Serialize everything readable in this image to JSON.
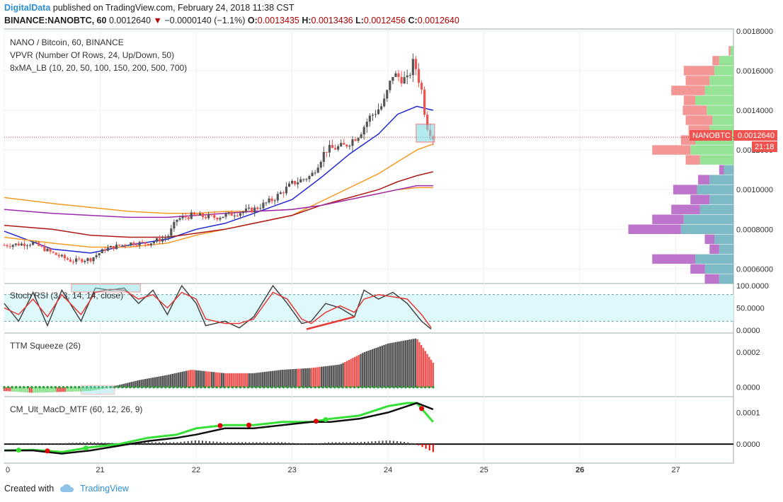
{
  "header": {
    "brand": "DigitalData",
    "published": "published on TradingView.com, February 24, 2018 11:38 CST",
    "symbol": "BINANCE:NANOBTC, 60",
    "last": "0.0012640",
    "change": "−0.0000140 (−1.1%)",
    "o_label": "O:",
    "o_value": "0.0013435",
    "h_label": "H:",
    "h_value": "0.0013436",
    "l_label": "L:",
    "l_value": "0.0012456",
    "c_label": "C:",
    "c_value": "0.0012640"
  },
  "footer": {
    "created": "Created with",
    "brand": "TradingView"
  },
  "colors": {
    "up": "#555555",
    "down": "#ef5350",
    "ma_blue": "#1f26d6",
    "ma_orange": "#f59a23",
    "ma_darkred": "#b01818",
    "ma_purple": "#9c27b0",
    "vp_up": "#8be08b",
    "vp_down": "#f28b8b"
  },
  "chart_data": [
    {
      "type": "candlestick",
      "title": "NANO / Bitcoin, 60, BINANCE",
      "indicators": [
        "VPVR (Number Of Rows, 24, Up/Down, 50)",
        "8xMA_LB (10, 20, 50, 100, 150, 200, 500, 700)"
      ],
      "x_ticks": [
        "0",
        "21",
        "22",
        "23",
        "24",
        "25",
        "26",
        "27"
      ],
      "x_range_days": [
        20,
        27.6
      ],
      "y_ticks": [
        "0.0006000",
        "0.0008000",
        "0.0010000",
        "0.0012000",
        "0.0014000",
        "0.0016000",
        "0.0018000"
      ],
      "ylim": [
        0.00053,
        0.00181
      ],
      "last_price_label": "NANOBTC",
      "last_price": "0.0012640",
      "countdown": "21:18",
      "last_price_value": 0.001264,
      "candle_anchors": [
        [
          20.0,
          0.00072
        ],
        [
          20.3,
          0.00073
        ],
        [
          20.5,
          0.00068
        ],
        [
          20.7,
          0.00064
        ],
        [
          20.9,
          0.00065
        ],
        [
          21.05,
          0.0007
        ],
        [
          21.3,
          0.00073
        ],
        [
          21.5,
          0.00073
        ],
        [
          21.7,
          0.00076
        ],
        [
          21.8,
          0.00085
        ],
        [
          21.95,
          0.00087
        ],
        [
          22.2,
          0.00086
        ],
        [
          22.4,
          0.00088
        ],
        [
          22.6,
          0.0009
        ],
        [
          22.8,
          0.00095
        ],
        [
          23.0,
          0.00103
        ],
        [
          23.2,
          0.00107
        ],
        [
          23.35,
          0.0012
        ],
        [
          23.55,
          0.00122
        ],
        [
          23.7,
          0.00128
        ],
        [
          23.8,
          0.00136
        ],
        [
          23.95,
          0.00143
        ],
        [
          24.05,
          0.00158
        ],
        [
          24.2,
          0.00155
        ],
        [
          24.27,
          0.00165
        ],
        [
          24.35,
          0.0015
        ],
        [
          24.4,
          0.00133
        ],
        [
          24.47,
          0.001264
        ]
      ],
      "moving_averages": [
        {
          "color": "#1f26d6",
          "points": [
            [
              20.0,
              0.00079
            ],
            [
              20.5,
              0.0007
            ],
            [
              20.9,
              0.00068
            ],
            [
              21.3,
              0.00072
            ],
            [
              21.7,
              0.00075
            ],
            [
              22.0,
              0.0008
            ],
            [
              22.3,
              0.00083
            ],
            [
              22.6,
              0.00088
            ],
            [
              23.0,
              0.00095
            ],
            [
              23.3,
              0.00106
            ],
            [
              23.6,
              0.00118
            ],
            [
              23.9,
              0.00128
            ],
            [
              24.1,
              0.00138
            ],
            [
              24.3,
              0.00142
            ],
            [
              24.47,
              0.0014
            ]
          ]
        },
        {
          "color": "#f59a23",
          "points": [
            [
              20.0,
              0.00076
            ],
            [
              20.5,
              0.00073
            ],
            [
              20.9,
              0.00071
            ],
            [
              21.3,
              0.00071
            ],
            [
              21.7,
              0.00073
            ],
            [
              22.0,
              0.00077
            ],
            [
              22.3,
              0.0008
            ],
            [
              22.6,
              0.00083
            ],
            [
              23.0,
              0.00087
            ],
            [
              23.3,
              0.00094
            ],
            [
              23.6,
              0.00101
            ],
            [
              23.9,
              0.00108
            ],
            [
              24.1,
              0.00114
            ],
            [
              24.3,
              0.0012
            ],
            [
              24.47,
              0.00123
            ]
          ]
        },
        {
          "color": "#b01818",
          "points": [
            [
              20.0,
              0.00082
            ],
            [
              20.5,
              0.0008
            ],
            [
              20.9,
              0.00077
            ],
            [
              21.3,
              0.00076
            ],
            [
              21.7,
              0.00076
            ],
            [
              22.0,
              0.00078
            ],
            [
              22.3,
              0.0008
            ],
            [
              22.6,
              0.00083
            ],
            [
              23.0,
              0.00087
            ],
            [
              23.3,
              0.00092
            ],
            [
              23.6,
              0.00096
            ],
            [
              23.9,
              0.001
            ],
            [
              24.1,
              0.00104
            ],
            [
              24.3,
              0.00107
            ],
            [
              24.47,
              0.00109
            ]
          ]
        },
        {
          "color": "#f59a23",
          "points": [
            [
              20.0,
              0.00096
            ],
            [
              20.5,
              0.00093
            ],
            [
              20.9,
              0.00091
            ],
            [
              21.3,
              0.00089
            ],
            [
              21.7,
              0.00088
            ],
            [
              22.0,
              0.00088
            ],
            [
              22.3,
              0.00089
            ],
            [
              22.6,
              0.00089
            ],
            [
              23.0,
              0.0009
            ],
            [
              23.3,
              0.00092
            ],
            [
              23.6,
              0.00095
            ],
            [
              23.9,
              0.00098
            ],
            [
              24.1,
              0.001
            ],
            [
              24.3,
              0.00101
            ],
            [
              24.47,
              0.00101
            ]
          ]
        },
        {
          "color": "#9c27b0",
          "points": [
            [
              20.0,
              0.0009
            ],
            [
              20.5,
              0.00088
            ],
            [
              20.9,
              0.00087
            ],
            [
              21.3,
              0.00086
            ],
            [
              21.7,
              0.00086
            ],
            [
              22.0,
              0.00087
            ],
            [
              22.3,
              0.00088
            ],
            [
              22.6,
              0.00089
            ],
            [
              23.0,
              0.0009
            ],
            [
              23.3,
              0.00092
            ],
            [
              23.6,
              0.00095
            ],
            [
              23.9,
              0.00098
            ],
            [
              24.1,
              0.001
            ],
            [
              24.3,
              0.00102
            ],
            [
              24.47,
              0.00102
            ]
          ]
        }
      ],
      "volume_profile": [
        {
          "price": 0.0017,
          "up": 3,
          "down": 2
        },
        {
          "price": 0.00165,
          "up": 15,
          "down": 7
        },
        {
          "price": 0.0016,
          "up": 20,
          "down": 32
        },
        {
          "price": 0.00155,
          "up": 25,
          "down": 25
        },
        {
          "price": 0.0015,
          "up": 30,
          "down": 35
        },
        {
          "price": 0.00145,
          "up": 40,
          "down": 12
        },
        {
          "price": 0.0014,
          "up": 28,
          "down": 25
        },
        {
          "price": 0.00135,
          "up": 22,
          "down": 28
        },
        {
          "price": 0.0013,
          "up": 25,
          "down": 22
        },
        {
          "price": 0.00125,
          "up": 40,
          "down": 15
        },
        {
          "price": 0.0012,
          "up": 45,
          "down": 40
        },
        {
          "price": 0.00115,
          "up": 35,
          "down": 15
        },
        {
          "price": 0.0011,
          "up": 10,
          "down": 5
        },
        {
          "price": 0.00105,
          "up": 25,
          "down": 12
        },
        {
          "price": 0.001,
          "up": 38,
          "down": 25
        },
        {
          "price": 0.00095,
          "up": 25,
          "down": 20
        },
        {
          "price": 0.0009,
          "up": 35,
          "down": 30
        },
        {
          "price": 0.00085,
          "up": 52,
          "down": 33
        },
        {
          "price": 0.0008,
          "up": 55,
          "down": 55
        },
        {
          "price": 0.00075,
          "up": 20,
          "down": 10
        },
        {
          "price": 0.0007,
          "up": 15,
          "down": 10
        },
        {
          "price": 0.00065,
          "up": 40,
          "down": 45
        },
        {
          "price": 0.0006,
          "up": 30,
          "down": 15
        },
        {
          "price": 0.00055,
          "up": 15,
          "down": 15
        }
      ]
    },
    {
      "type": "line",
      "title": "Stoch RSI (3, 3, 14, 14, close)",
      "y_ticks": [
        "0.0000",
        "50.0000",
        "100.0000"
      ],
      "ylim": [
        -5,
        105
      ],
      "bands": [
        20,
        80
      ],
      "k": [
        [
          20.0,
          60
        ],
        [
          20.15,
          20
        ],
        [
          20.3,
          85
        ],
        [
          20.45,
          10
        ],
        [
          20.6,
          90
        ],
        [
          20.8,
          20
        ],
        [
          20.95,
          95
        ],
        [
          21.1,
          90
        ],
        [
          21.25,
          95
        ],
        [
          21.4,
          60
        ],
        [
          21.55,
          90
        ],
        [
          21.7,
          35
        ],
        [
          21.85,
          100
        ],
        [
          22.0,
          60
        ],
        [
          22.1,
          10
        ],
        [
          22.3,
          20
        ],
        [
          22.45,
          5
        ],
        [
          22.6,
          30
        ],
        [
          22.8,
          100
        ],
        [
          22.95,
          60
        ],
        [
          23.1,
          15
        ],
        [
          23.2,
          20
        ],
        [
          23.35,
          60
        ],
        [
          23.5,
          50
        ],
        [
          23.65,
          30
        ],
        [
          23.75,
          90
        ],
        [
          23.9,
          70
        ],
        [
          24.05,
          85
        ],
        [
          24.2,
          60
        ],
        [
          24.35,
          20
        ],
        [
          24.45,
          2
        ]
      ],
      "d": [
        [
          20.0,
          50
        ],
        [
          20.15,
          35
        ],
        [
          20.3,
          70
        ],
        [
          20.45,
          30
        ],
        [
          20.6,
          80
        ],
        [
          20.8,
          35
        ],
        [
          20.95,
          85
        ],
        [
          21.1,
          92
        ],
        [
          21.25,
          90
        ],
        [
          21.4,
          70
        ],
        [
          21.55,
          80
        ],
        [
          21.7,
          50
        ],
        [
          21.85,
          85
        ],
        [
          22.0,
          70
        ],
        [
          22.1,
          25
        ],
        [
          22.3,
          15
        ],
        [
          22.45,
          15
        ],
        [
          22.6,
          25
        ],
        [
          22.8,
          85
        ],
        [
          22.95,
          70
        ],
        [
          23.1,
          25
        ],
        [
          23.2,
          15
        ],
        [
          23.35,
          40
        ],
        [
          23.5,
          55
        ],
        [
          23.65,
          40
        ],
        [
          23.75,
          70
        ],
        [
          23.9,
          80
        ],
        [
          24.05,
          75
        ],
        [
          24.2,
          70
        ],
        [
          24.35,
          35
        ],
        [
          24.45,
          5
        ]
      ]
    },
    {
      "type": "area",
      "title": "TTM Squeeze (26)",
      "y_ticks": [
        "0.0000",
        "0.0002"
      ],
      "ylim": [
        -5e-05,
        0.00031
      ],
      "histogram": [
        [
          20.0,
          -2e-05
        ],
        [
          20.3,
          -3e-05
        ],
        [
          20.6,
          -2.5e-05
        ],
        [
          20.9,
          -2e-05
        ],
        [
          21.1,
          0.0
        ],
        [
          21.4,
          4e-05
        ],
        [
          21.7,
          7e-05
        ],
        [
          21.95,
          0.0001
        ],
        [
          22.3,
          8e-05
        ],
        [
          22.6,
          8e-05
        ],
        [
          22.9,
          0.0001
        ],
        [
          23.2,
          0.00011
        ],
        [
          23.5,
          0.00013
        ],
        [
          23.75,
          0.0002
        ],
        [
          24.0,
          0.00025
        ],
        [
          24.3,
          0.00028
        ],
        [
          24.47,
          0.00014
        ]
      ]
    },
    {
      "type": "line",
      "title": "CM_Ult_MacD_MTF (60, 12, 26, 9)",
      "y_ticks": [
        "0.0000",
        "0.0001"
      ],
      "ylim": [
        -6e-05,
        0.00015
      ],
      "macd": [
        [
          20.0,
          -2e-05
        ],
        [
          20.3,
          -1.8e-05
        ],
        [
          20.6,
          -2.5e-05
        ],
        [
          20.9,
          -1e-05
        ],
        [
          21.2,
          0.0
        ],
        [
          21.5,
          2e-05
        ],
        [
          21.8,
          3e-05
        ],
        [
          22.0,
          5e-05
        ],
        [
          22.3,
          6e-05
        ],
        [
          22.6,
          6e-05
        ],
        [
          22.9,
          7e-05
        ],
        [
          23.2,
          7e-05
        ],
        [
          23.4,
          8e-05
        ],
        [
          23.7,
          9e-05
        ],
        [
          24.0,
          0.00012
        ],
        [
          24.2,
          0.00013
        ],
        [
          24.3,
          0.00013
        ],
        [
          24.47,
          7e-05
        ]
      ],
      "signal": [
        [
          20.0,
          -2e-05
        ],
        [
          20.3,
          -2e-05
        ],
        [
          20.6,
          -3e-05
        ],
        [
          20.9,
          -2e-05
        ],
        [
          21.2,
          -5e-06
        ],
        [
          21.5,
          1e-05
        ],
        [
          21.8,
          2e-05
        ],
        [
          22.0,
          3e-05
        ],
        [
          22.3,
          5e-05
        ],
        [
          22.6,
          5e-05
        ],
        [
          22.9,
          6e-05
        ],
        [
          23.2,
          7e-05
        ],
        [
          23.4,
          7e-05
        ],
        [
          23.7,
          8e-05
        ],
        [
          24.0,
          0.0001
        ],
        [
          24.2,
          0.00012
        ],
        [
          24.3,
          0.00013
        ],
        [
          24.47,
          0.00011
        ]
      ]
    }
  ]
}
